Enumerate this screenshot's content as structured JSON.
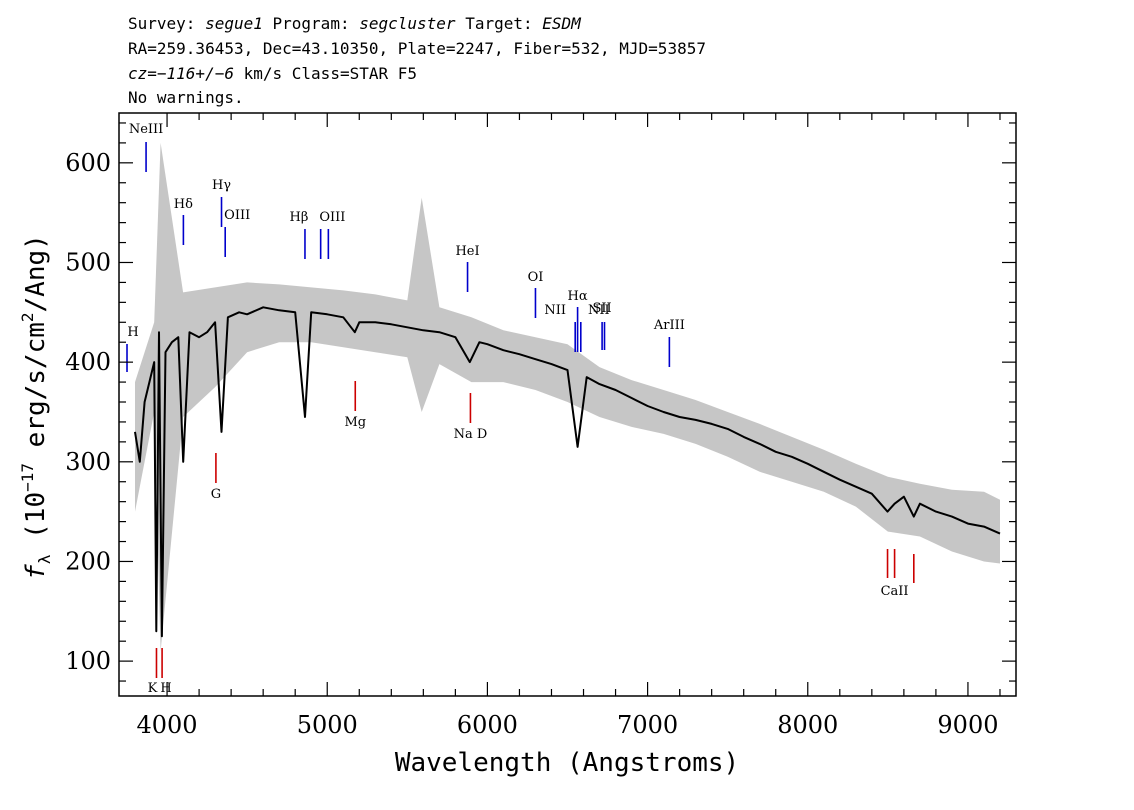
{
  "header": {
    "line1": {
      "survey_label": "Survey:",
      "survey": "segue1",
      "program_label": "Program:",
      "program": "segcluster",
      "target_label": "Target:",
      "target": "ESDM"
    },
    "line2": "RA=259.36453, Dec=43.10350, Plate=2247, Fiber=532, MJD=53857",
    "line3": {
      "cz": "cz=−116+/−6",
      "unit": "km/s",
      "class": "Class=STAR F5"
    },
    "line4": "No warnings."
  },
  "chart_data": {
    "type": "line",
    "xlabel": "Wavelength (Angstroms)",
    "ylabel": "f_λ (10^−17 erg/s/cm^2/Ang)",
    "ylabel_parts": {
      "f": "f",
      "lambda": "λ",
      "open": " (10",
      "exp1": "−17",
      "mid": " erg/s/cm",
      "exp2": "2",
      "close": "/Ang)"
    },
    "xlim": [
      3700,
      9300
    ],
    "ylim": [
      65,
      650
    ],
    "xticks": [
      4000,
      5000,
      6000,
      7000,
      8000,
      9000
    ],
    "yticks": [
      100,
      200,
      300,
      400,
      500,
      600
    ],
    "series": [
      {
        "color": "#000000",
        "x": [
          3800,
          3830,
          3860,
          3890,
          3920,
          3933,
          3950,
          3968,
          3990,
          4030,
          4070,
          4101,
          4140,
          4200,
          4250,
          4300,
          4340,
          4380,
          4450,
          4500,
          4600,
          4700,
          4800,
          4861,
          4900,
          5000,
          5100,
          5172,
          5200,
          5300,
          5400,
          5500,
          5600,
          5700,
          5800,
          5890,
          5950,
          6000,
          6100,
          6200,
          6300,
          6400,
          6500,
          6563,
          6620,
          6700,
          6800,
          6900,
          7000,
          7100,
          7200,
          7300,
          7400,
          7500,
          7600,
          7700,
          7800,
          7900,
          8000,
          8100,
          8200,
          8300,
          8400,
          8498,
          8542,
          8600,
          8662,
          8700,
          8800,
          8900,
          9000,
          9100,
          9200
        ],
        "y": [
          330,
          300,
          360,
          380,
          400,
          130,
          430,
          125,
          410,
          420,
          425,
          300,
          430,
          425,
          430,
          440,
          330,
          445,
          450,
          448,
          455,
          452,
          450,
          345,
          450,
          448,
          445,
          430,
          440,
          440,
          438,
          435,
          432,
          430,
          425,
          400,
          420,
          418,
          412,
          408,
          403,
          398,
          392,
          315,
          385,
          378,
          372,
          364,
          356,
          350,
          345,
          342,
          338,
          333,
          325,
          318,
          310,
          305,
          298,
          290,
          282,
          275,
          268,
          250,
          258,
          265,
          245,
          258,
          250,
          245,
          238,
          235,
          228
        ]
      },
      {
        "color": "#c0c0c0",
        "name": "",
        "x": [
          3800,
          3920,
          3960,
          4100,
          4300,
          4500,
          4700,
          4900,
          5100,
          5300,
          5500,
          5590,
          5700,
          5900,
          6100,
          6300,
          6500,
          6700,
          6900,
          7100,
          7300,
          7500,
          7700,
          7900,
          8100,
          8300,
          8500,
          8700,
          8900,
          9100,
          9200
        ],
        "y_high": [
          380,
          440,
          620,
          470,
          475,
          480,
          478,
          475,
          472,
          468,
          462,
          565,
          455,
          445,
          432,
          425,
          418,
          395,
          382,
          372,
          362,
          350,
          338,
          325,
          312,
          298,
          285,
          278,
          272,
          270,
          262
        ],
        "y_low": [
          250,
          350,
          110,
          345,
          375,
          410,
          420,
          420,
          415,
          410,
          405,
          350,
          398,
          380,
          380,
          372,
          360,
          345,
          335,
          328,
          318,
          305,
          290,
          280,
          270,
          255,
          230,
          225,
          210,
          200,
          198
        ]
      }
    ],
    "lines": [
      {
        "name": "NeIII",
        "x": 3869,
        "color": "#0000cc",
        "label": "NeIII"
      },
      {
        "name": "H_edge",
        "x": 3750,
        "color": "#0000cc",
        "label": "H"
      },
      {
        "name": "Hdelta",
        "x": 4102,
        "color": "#0000cc",
        "label": "Hδ"
      },
      {
        "name": "Hgamma",
        "x": 4340,
        "color": "#0000cc",
        "label": "Hγ"
      },
      {
        "name": "OIII_4363",
        "x": 4363,
        "color": "#0000cc",
        "label": "OIII"
      },
      {
        "name": "Hbeta",
        "x": 4861,
        "color": "#0000cc",
        "label": "Hβ"
      },
      {
        "name": "OIII_4959",
        "x": 4959,
        "color": "#0000cc",
        "label": ""
      },
      {
        "name": "OIII_5007",
        "x": 5007,
        "color": "#0000cc",
        "label": "OIII"
      },
      {
        "name": "HeI",
        "x": 5876,
        "color": "#0000cc",
        "label": "HeI"
      },
      {
        "name": "OI",
        "x": 6300,
        "color": "#0000cc",
        "label": "OI"
      },
      {
        "name": "NII_6548",
        "x": 6548,
        "color": "#0000cc",
        "label": "NII"
      },
      {
        "name": "Halpha",
        "x": 6563,
        "color": "#0000cc",
        "label": "Hα"
      },
      {
        "name": "NII_6583",
        "x": 6583,
        "color": "#0000cc",
        "label": "NII"
      },
      {
        "name": "SII_6716",
        "x": 6716,
        "color": "#0000cc",
        "label": "SII"
      },
      {
        "name": "SII_6731",
        "x": 6731,
        "color": "#0000cc",
        "label": ""
      },
      {
        "name": "ArIII",
        "x": 7136,
        "color": "#0000cc",
        "label": "ArIII"
      },
      {
        "name": "K",
        "x": 3934,
        "color": "#cc0000",
        "label": "K"
      },
      {
        "name": "H_CaII",
        "x": 3969,
        "color": "#cc0000",
        "label": "H"
      },
      {
        "name": "G",
        "x": 4305,
        "color": "#cc0000",
        "label": "G"
      },
      {
        "name": "Mg",
        "x": 5175,
        "color": "#cc0000",
        "label": "Mg"
      },
      {
        "name": "NaD",
        "x": 5894,
        "color": "#cc0000",
        "label": "Na D"
      },
      {
        "name": "CaII_8498",
        "x": 8498,
        "color": "#cc0000",
        "label": ""
      },
      {
        "name": "CaII_8542",
        "x": 8542,
        "color": "#cc0000",
        "label": "CaII"
      },
      {
        "name": "CaII_8662",
        "x": 8662,
        "color": "#cc0000",
        "label": ""
      }
    ]
  }
}
